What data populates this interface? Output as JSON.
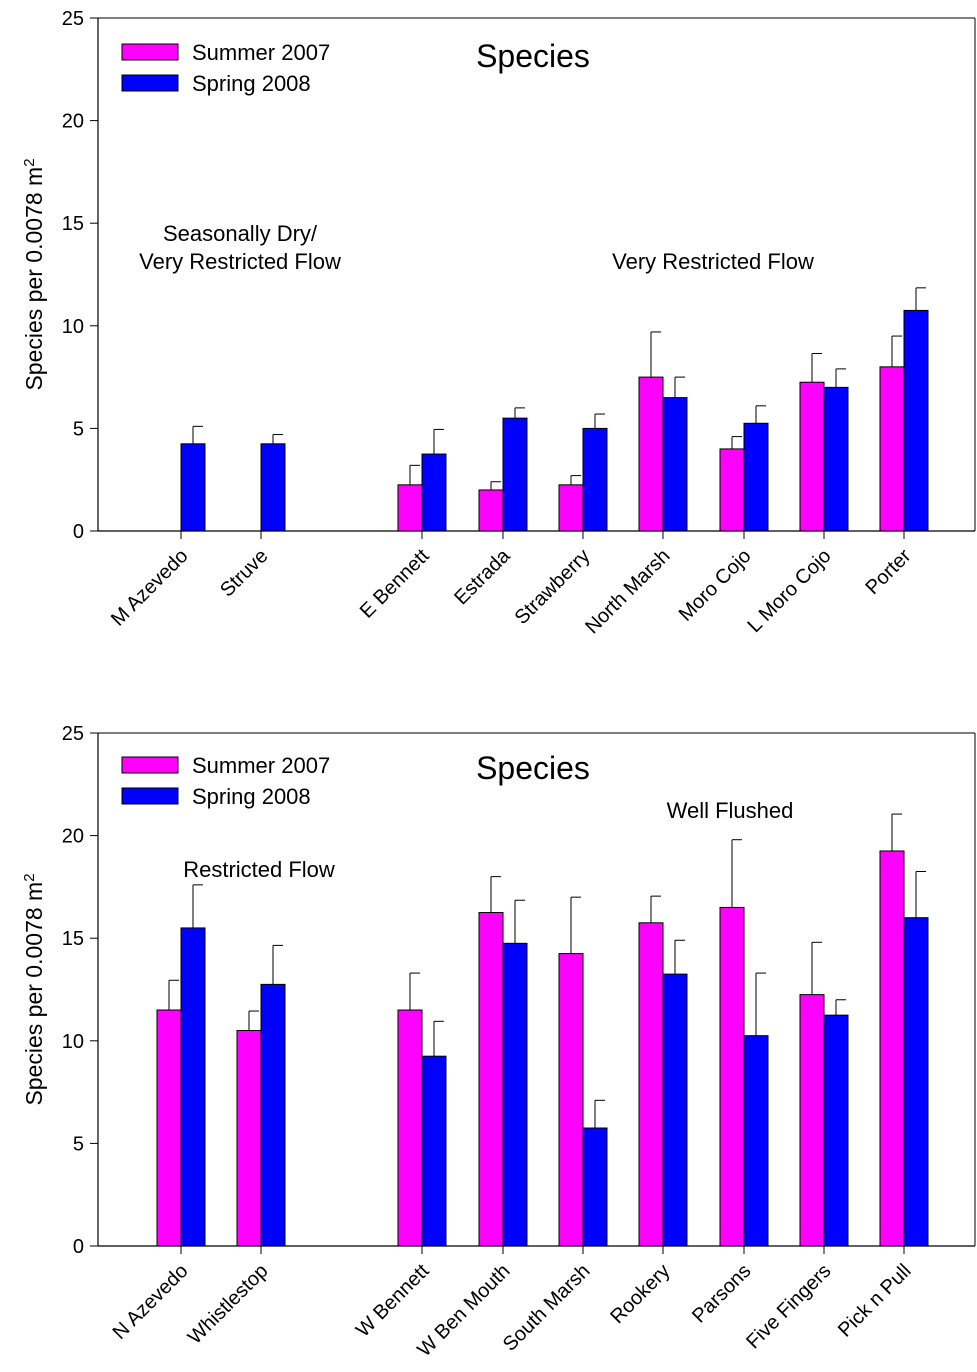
{
  "colors": {
    "summer": "#FF00FF",
    "spring": "#0000FF",
    "axis": "#000000"
  },
  "chart_data": [
    {
      "type": "bar",
      "title": "Species",
      "xlabel": "",
      "ylabel": "Species per 0.0078 m",
      "ylabel_superscript": "2",
      "ylim": [
        0,
        25
      ],
      "yticks": [
        0,
        5,
        10,
        15,
        20,
        25
      ],
      "grid": false,
      "legend_position": "top-left",
      "series": [
        {
          "name": "Summer 2007",
          "color": "#FF00FF"
        },
        {
          "name": "Spring 2008",
          "color": "#0000FF"
        }
      ],
      "groups": [
        {
          "label_lines": [
            "Seasonally Dry/",
            "Very Restricted Flow"
          ]
        },
        {
          "label_lines": [
            "Very Restricted Flow"
          ]
        }
      ],
      "categories": [
        {
          "name": "M Azevedo",
          "summer": null,
          "summer_err": null,
          "spring": 4.25,
          "spring_err": 0.85
        },
        {
          "name": "Struve",
          "summer": null,
          "summer_err": null,
          "spring": 4.25,
          "spring_err": 0.45
        },
        {
          "name": "E Bennett",
          "summer": 2.25,
          "summer_err": 0.95,
          "spring": 3.75,
          "spring_err": 1.2
        },
        {
          "name": "Estrada",
          "summer": 2.0,
          "summer_err": 0.4,
          "spring": 5.5,
          "spring_err": 0.5
        },
        {
          "name": "Strawberry",
          "summer": 2.25,
          "summer_err": 0.45,
          "spring": 5.0,
          "spring_err": 0.7
        },
        {
          "name": "North Marsh",
          "summer": 7.5,
          "summer_err": 2.2,
          "spring": 6.5,
          "spring_err": 1.0
        },
        {
          "name": "Moro Cojo",
          "summer": 4.0,
          "summer_err": 0.6,
          "spring": 5.25,
          "spring_err": 0.85
        },
        {
          "name": "L Moro Cojo",
          "summer": 7.25,
          "summer_err": 1.4,
          "spring": 7.0,
          "spring_err": 0.9
        },
        {
          "name": "Porter",
          "summer": 8.0,
          "summer_err": 1.5,
          "spring": 10.75,
          "spring_err": 1.1
        }
      ]
    },
    {
      "type": "bar",
      "title": "Species",
      "xlabel": "",
      "ylabel": "Species per 0.0078 m",
      "ylabel_superscript": "2",
      "ylim": [
        0,
        25
      ],
      "yticks": [
        0,
        5,
        10,
        15,
        20,
        25
      ],
      "grid": false,
      "legend_position": "top-left",
      "series": [
        {
          "name": "Summer 2007",
          "color": "#FF00FF"
        },
        {
          "name": "Spring 2008",
          "color": "#0000FF"
        }
      ],
      "groups": [
        {
          "label_lines": [
            "Restricted Flow"
          ]
        },
        {
          "label_lines": [
            "Well Flushed"
          ]
        }
      ],
      "categories": [
        {
          "name": "N Azevedo",
          "summer": 11.5,
          "summer_err": 1.45,
          "spring": 15.5,
          "spring_err": 2.1
        },
        {
          "name": "Whistlestop",
          "summer": 10.5,
          "summer_err": 0.95,
          "spring": 12.75,
          "spring_err": 1.9
        },
        {
          "name": "W Bennett",
          "summer": 11.5,
          "summer_err": 1.8,
          "spring": 9.25,
          "spring_err": 1.7
        },
        {
          "name": "W Ben Mouth",
          "summer": 16.25,
          "summer_err": 1.75,
          "spring": 14.75,
          "spring_err": 2.1
        },
        {
          "name": "South Marsh",
          "summer": 14.25,
          "summer_err": 2.75,
          "spring": 5.75,
          "spring_err": 1.35
        },
        {
          "name": "Rookery",
          "summer": 15.75,
          "summer_err": 1.3,
          "spring": 13.25,
          "spring_err": 1.65
        },
        {
          "name": "Parsons",
          "summer": 16.5,
          "summer_err": 3.3,
          "spring": 10.25,
          "spring_err": 3.05
        },
        {
          "name": "Five Fingers",
          "summer": 12.25,
          "summer_err": 2.55,
          "spring": 11.25,
          "spring_err": 0.75
        },
        {
          "name": "Pick n Pull",
          "summer": 19.25,
          "summer_err": 1.8,
          "spring": 16.0,
          "spring_err": 2.25
        }
      ]
    }
  ]
}
